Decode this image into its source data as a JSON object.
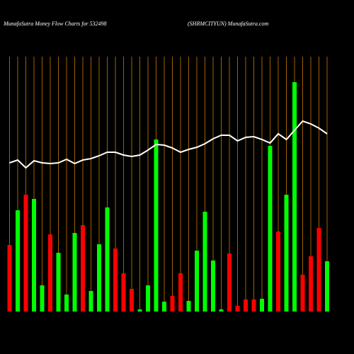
{
  "chart_data": {
    "type": "bar",
    "title": "MunafaSutra  Money Flow  Charts for 532498",
    "subtitle": "(SHRMCITYUN) MunafaSutra.com",
    "categories": [
      null,
      null,
      null,
      null,
      null,
      null,
      null,
      null,
      null,
      null,
      null,
      null,
      null,
      null,
      null,
      null,
      null,
      null,
      null,
      null,
      null,
      null,
      null,
      null,
      null,
      null,
      null,
      null,
      null,
      null,
      null,
      null,
      null,
      null,
      null,
      null,
      null,
      null,
      null,
      null
    ],
    "bar_values": [
      94,
      143,
      165,
      159,
      37,
      109,
      83,
      24,
      111,
      122,
      29,
      95,
      147,
      89,
      54,
      32,
      3,
      37,
      243,
      14,
      22,
      54,
      15,
      86,
      141,
      72,
      3,
      82,
      8,
      17,
      17,
      18,
      234,
      113,
      165,
      324,
      52,
      78,
      118,
      71
    ],
    "bar_colors": [
      "#ff0000",
      "#00ff00",
      "#ff0000",
      "#00ff00",
      "#00ff00",
      "#ff0000",
      "#00ff00",
      "#00ff00",
      "#00ff00",
      "#ff0000",
      "#00ff00",
      "#00ff00",
      "#00ff00",
      "#ff0000",
      "#ff0000",
      "#ff0000",
      "#00ff00",
      "#00ff00",
      "#00ff00",
      "#00ff00",
      "#ff0000",
      "#ff0000",
      "#00ff00",
      "#00ff00",
      "#00ff00",
      "#00ff00",
      "#00ff00",
      "#ff0000",
      "#ff0000",
      "#ff0000",
      "#ff0000",
      "#00ff00",
      "#00ff00",
      "#ff0000",
      "#00ff00",
      "#00ff00",
      "#ff0000",
      "#ff0000",
      "#ff0000",
      "#00ff00"
    ],
    "line_values": [
      210,
      214,
      203,
      213,
      210,
      209,
      210,
      215,
      209,
      214,
      216,
      220,
      225,
      225,
      221,
      219,
      221,
      228,
      236,
      235,
      231,
      225,
      229,
      232,
      237,
      244,
      249,
      249,
      241,
      246,
      247,
      243,
      238,
      251,
      243,
      256,
      269,
      265,
      259,
      251
    ],
    "line_color": "#ffffff",
    "grid_color": "#cc7a00",
    "ylim": [
      0,
      360
    ],
    "grid": true
  }
}
